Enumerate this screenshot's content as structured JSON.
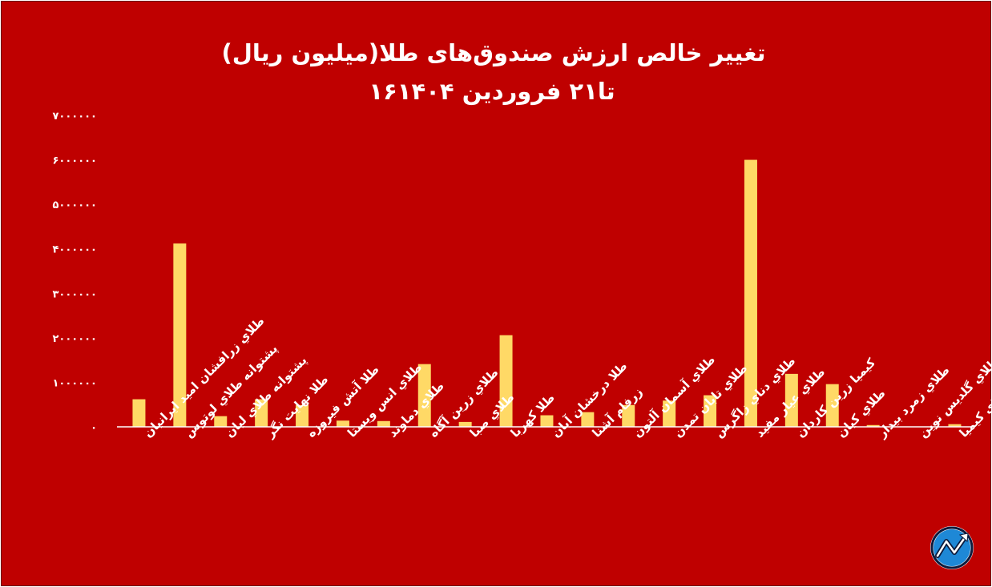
{
  "chart_data": {
    "type": "bar",
    "title": "تغییر خالص ارزش صندوق‌های طلا(میلیون ریال)",
    "subtitle": "۱۶تا۲۱ فروردین ۱۴۰۴",
    "xlabel": "",
    "ylabel": "",
    "ylim": [
      0,
      7000000
    ],
    "y_ticks": [
      0,
      1000000,
      2000000,
      3000000,
      4000000,
      5000000,
      6000000,
      7000000
    ],
    "y_tick_labels": [
      "۰",
      "۱۰۰۰۰۰۰",
      "۲۰۰۰۰۰۰",
      "۳۰۰۰۰۰۰",
      "۴۰۰۰۰۰۰",
      "۵۰۰۰۰۰۰",
      "۶۰۰۰۰۰۰",
      "۷۰۰۰۰۰۰"
    ],
    "grid": false,
    "legend": "none",
    "bar_color": "#ffd966",
    "categories": [
      "طلاي زرافشان امید ایرانیان",
      "پشتوانه طلاي لوتوس",
      "پشتوانه طلاي لیان",
      "طلا نهایت نگر",
      "طلا آتش فیروزه",
      "طلاي انس ویستا",
      "طلاي دماوند",
      "طلاي زرین آگاه",
      "طلاي صبا",
      "طلا کهربا",
      "طلا درخشان آبان",
      "زرفام آشنا",
      "طلاي آسمان آلتون",
      "طلاي تابان تمدن",
      "طلاي دناي زاگرس",
      "طلاي عیار مفید",
      "کیمیا زرین کاردان",
      "طلاي کیان",
      "طلاي زمرد بیدار",
      "طلاي گلدیس نوین",
      "طلاي کیمیا"
    ],
    "values": [
      620000,
      4120000,
      240000,
      620000,
      490000,
      140000,
      130000,
      1410000,
      110000,
      2060000,
      260000,
      330000,
      490000,
      590000,
      710000,
      6000000,
      1190000,
      960000,
      40000,
      0,
      60000
    ]
  },
  "logo": {
    "icon": "rising-trend-logo-icon"
  }
}
